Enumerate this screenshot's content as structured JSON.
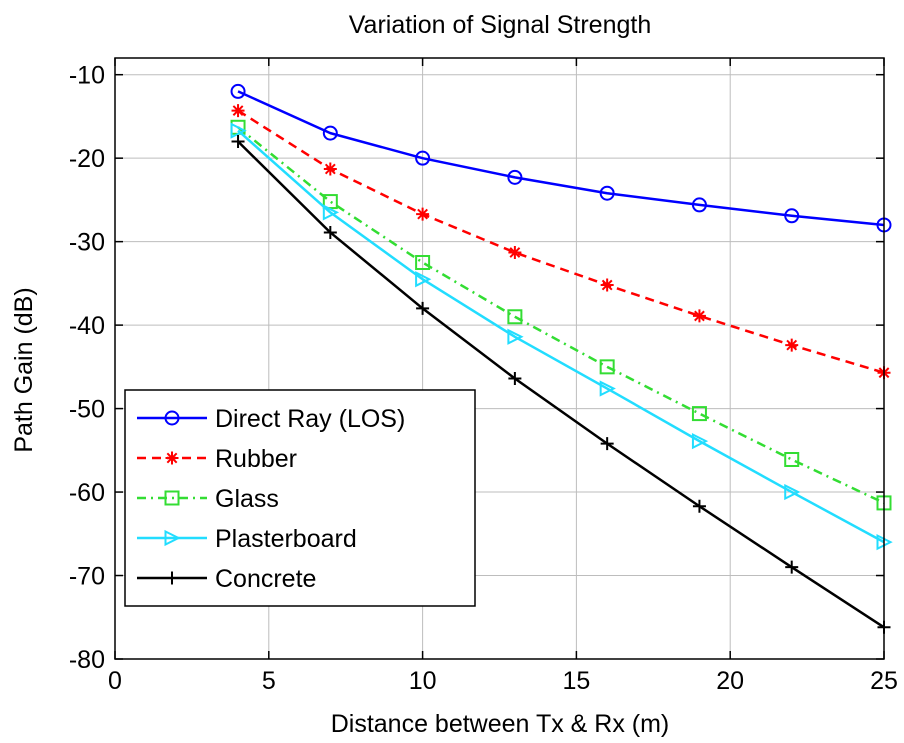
{
  "chart_data": {
    "type": "line",
    "title": "Variation of Signal Strength",
    "xlabel": "Distance between Tx & Rx (m)",
    "ylabel": "Path Gain (dB)",
    "xlim": [
      0,
      25
    ],
    "ylim": [
      -80,
      -8
    ],
    "xticks": [
      0,
      5,
      10,
      15,
      20,
      25
    ],
    "yticks": [
      -10,
      -20,
      -30,
      -40,
      -50,
      -60,
      -70,
      -80
    ],
    "grid": true,
    "legend_position": "lower-left",
    "x": [
      4,
      7,
      10,
      13,
      16,
      19,
      22,
      25
    ],
    "series": [
      {
        "name": "Direct Ray (LOS)",
        "color": "#0000ff",
        "dash": "solid",
        "marker": "circle",
        "values": [
          -12,
          -17,
          -20,
          -22.3,
          -24.2,
          -25.6,
          -26.9,
          -28
        ]
      },
      {
        "name": "Rubber",
        "color": "#ff0000",
        "dash": "dashed",
        "marker": "star",
        "values": [
          -14.3,
          -21.3,
          -26.7,
          -31.3,
          -35.2,
          -38.9,
          -42.4,
          -45.7
        ]
      },
      {
        "name": "Glass",
        "color": "#33dd33",
        "dash": "dashdot",
        "marker": "square",
        "values": [
          -16.3,
          -25.2,
          -32.5,
          -39,
          -45,
          -50.6,
          -56.1,
          -61.3
        ]
      },
      {
        "name": "Plasterboard",
        "color": "#22ddff",
        "dash": "solid",
        "marker": "triangle-right",
        "values": [
          -16.7,
          -26.5,
          -34.5,
          -41.4,
          -47.6,
          -53.9,
          -60,
          -66
        ]
      },
      {
        "name": "Concrete",
        "color": "#000000",
        "dash": "solid",
        "marker": "plus",
        "values": [
          -18,
          -28.9,
          -38,
          -46.4,
          -54.2,
          -61.7,
          -69,
          -76.2
        ]
      }
    ]
  }
}
